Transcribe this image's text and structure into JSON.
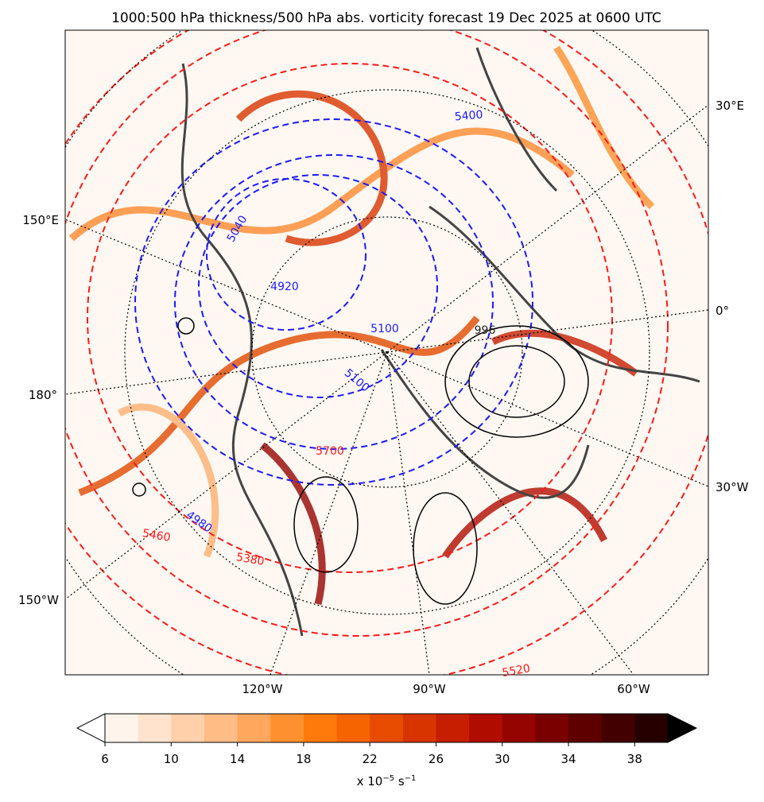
{
  "title": "1000:500 hPa thickness/500 hPa abs. vorticity forecast 19 Dec 2025 at 0600 UTC",
  "map": {
    "lon_labels": [
      {
        "text": "30°E",
        "side": "right"
      },
      {
        "text": "150°E",
        "side": "left"
      },
      {
        "text": "0°",
        "side": "right"
      },
      {
        "text": "180°",
        "side": "left"
      },
      {
        "text": "30°W",
        "side": "right"
      },
      {
        "text": "150°W",
        "side": "left"
      },
      {
        "text": "120°W",
        "side": "bottom"
      },
      {
        "text": "90°W",
        "side": "bottom"
      },
      {
        "text": "60°W",
        "side": "bottom"
      }
    ],
    "thickness_labels": [
      {
        "text": "5400",
        "color": "#1a1aff"
      },
      {
        "text": "5040",
        "color": "#1a1aff"
      },
      {
        "text": "4920",
        "color": "#1a1aff"
      },
      {
        "text": "5100",
        "color": "#1a1aff"
      },
      {
        "text": "5100",
        "color": "#1a1aff"
      },
      {
        "text": "4980",
        "color": "#1a1aff"
      },
      {
        "text": "5460",
        "color": "#ff1a1a"
      },
      {
        "text": "5380",
        "color": "#ff1a1a"
      },
      {
        "text": "5520",
        "color": "#ff1a1a"
      },
      {
        "text": "5700",
        "color": "#ff1a1a"
      },
      {
        "text": "996",
        "color": "#222222"
      }
    ]
  },
  "colorbar": {
    "bounds": [
      6,
      8,
      10,
      12,
      14,
      16,
      18,
      20,
      22,
      24,
      26,
      28,
      30,
      32,
      34,
      36,
      38,
      40
    ],
    "colors": [
      "#fff4ec",
      "#ffe3cc",
      "#ffd0aa",
      "#ffbc85",
      "#ffa75c",
      "#ff9030",
      "#ff7a0a",
      "#f56400",
      "#e84c00",
      "#d83400",
      "#c61e00",
      "#b00c00",
      "#960400",
      "#7a0000",
      "#5e0000",
      "#420000",
      "#260000"
    ],
    "under_color": "#ffffff",
    "over_color": "#000000",
    "ticks": [
      6,
      10,
      14,
      18,
      22,
      26,
      30,
      34,
      38
    ],
    "label": {
      "base": "x 10",
      "exp1": "−5",
      "unit": " s",
      "exp2": "−1"
    }
  }
}
